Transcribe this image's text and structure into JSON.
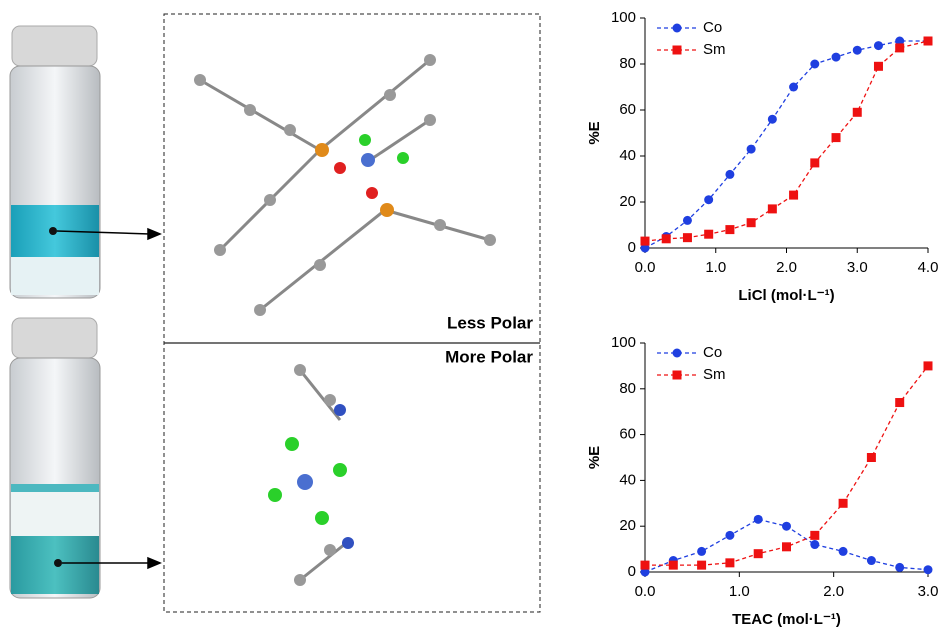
{
  "figure": {
    "labels": [
      "Less Polar",
      "More Polar"
    ]
  },
  "chart_data": [
    {
      "type": "line",
      "xlabel": "LiCl (mol·L⁻¹)",
      "ylabel": "%E",
      "x": [
        0,
        0.3,
        0.6,
        0.9,
        1.2,
        1.5,
        1.8,
        2.1,
        2.4,
        2.7,
        3.0,
        3.3,
        3.6,
        4.0
      ],
      "series": [
        {
          "name": "Co",
          "color": "#1f3fe0",
          "marker": "circle",
          "values": [
            0,
            5,
            12,
            21,
            32,
            43,
            56,
            70,
            80,
            83,
            86,
            88,
            90,
            90
          ]
        },
        {
          "name": "Sm",
          "color": "#ee1111",
          "marker": "square",
          "values": [
            3,
            4,
            4.5,
            6,
            8,
            11,
            17,
            23,
            37,
            48,
            59,
            79,
            87,
            90
          ]
        }
      ],
      "xlim": [
        0,
        4
      ],
      "ylim": [
        0,
        100
      ],
      "xticks": [
        {
          "value": 0,
          "label": "0.0"
        },
        {
          "value": 1,
          "label": "1.0"
        },
        {
          "value": 2,
          "label": "2.0"
        },
        {
          "value": 3,
          "label": "3.0"
        },
        {
          "value": 4,
          "label": "4.0"
        }
      ],
      "yticks": [
        0,
        20,
        40,
        60,
        80,
        100
      ],
      "legend": "upper-left"
    },
    {
      "type": "line",
      "xlabel": "TEAC (mol·L⁻¹)",
      "ylabel": "%E",
      "x": [
        0,
        0.3,
        0.6,
        0.9,
        1.2,
        1.5,
        1.8,
        2.1,
        2.4,
        2.7,
        3.0
      ],
      "series": [
        {
          "name": "Co",
          "color": "#1f3fe0",
          "marker": "circle",
          "values": [
            0,
            5,
            9,
            16,
            23,
            20,
            12,
            9,
            5,
            2,
            1
          ]
        },
        {
          "name": "Sm",
          "color": "#ee1111",
          "marker": "square",
          "values": [
            3,
            3,
            3,
            4,
            8,
            11,
            16,
            30,
            50,
            74,
            90
          ]
        }
      ],
      "xlim": [
        0,
        3
      ],
      "ylim": [
        0,
        100
      ],
      "xticks": [
        {
          "value": 0,
          "label": "0.0"
        },
        {
          "value": 1,
          "label": "1.0"
        },
        {
          "value": 2,
          "label": "2.0"
        },
        {
          "value": 3,
          "label": "3.0"
        }
      ],
      "yticks": [
        0,
        20,
        40,
        60,
        80,
        100
      ],
      "legend": "upper-left"
    }
  ]
}
